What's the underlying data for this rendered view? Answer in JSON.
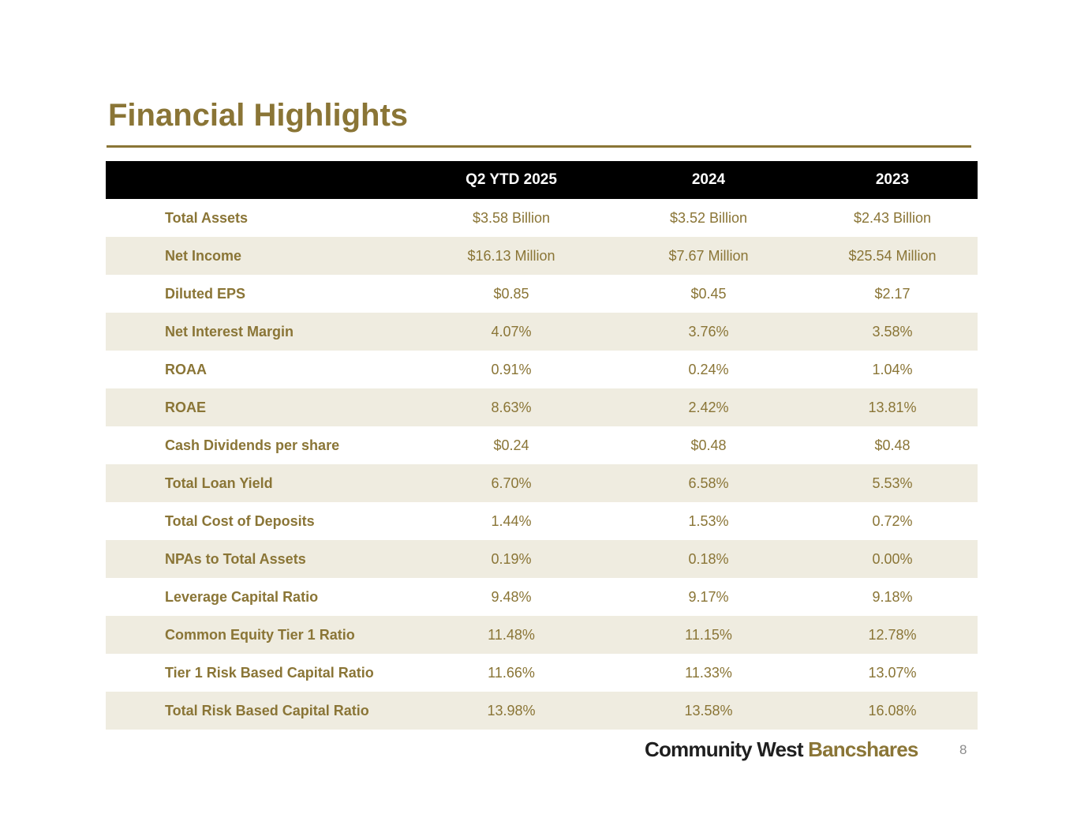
{
  "slide": {
    "title": "Financial Highlights",
    "page_number": "8"
  },
  "table": {
    "columns": [
      "",
      "Q2 YTD 2025",
      "2024",
      "2023"
    ],
    "rows": [
      {
        "label": "Total Assets",
        "q2_ytd_2025": "$3.58 Billion",
        "y2024": "$3.52 Billion",
        "y2023": "$2.43 Billion"
      },
      {
        "label": "Net Income",
        "q2_ytd_2025": "$16.13 Million",
        "y2024": "$7.67 Million",
        "y2023": "$25.54 Million"
      },
      {
        "label": "Diluted EPS",
        "q2_ytd_2025": "$0.85",
        "y2024": "$0.45",
        "y2023": "$2.17"
      },
      {
        "label": "Net Interest Margin",
        "q2_ytd_2025": "4.07%",
        "y2024": "3.76%",
        "y2023": "3.58%"
      },
      {
        "label": "ROAA",
        "q2_ytd_2025": "0.91%",
        "y2024": "0.24%",
        "y2023": "1.04%"
      },
      {
        "label": "ROAE",
        "q2_ytd_2025": "8.63%",
        "y2024": "2.42%",
        "y2023": "13.81%"
      },
      {
        "label": "Cash Dividends per share",
        "q2_ytd_2025": "$0.24",
        "y2024": "$0.48",
        "y2023": "$0.48"
      },
      {
        "label": "Total Loan Yield",
        "q2_ytd_2025": "6.70%",
        "y2024": "6.58%",
        "y2023": "5.53%"
      },
      {
        "label": "Total Cost of Deposits",
        "q2_ytd_2025": "1.44%",
        "y2024": "1.53%",
        "y2023": "0.72%"
      },
      {
        "label": "NPAs to Total Assets",
        "q2_ytd_2025": "0.19%",
        "y2024": "0.18%",
        "y2023": "0.00%"
      },
      {
        "label": "Leverage Capital Ratio",
        "q2_ytd_2025": "9.48%",
        "y2024": "9.17%",
        "y2023": "9.18%"
      },
      {
        "label": "Common Equity Tier 1 Ratio",
        "q2_ytd_2025": "11.48%",
        "y2024": "11.15%",
        "y2023": "12.78%"
      },
      {
        "label": "Tier 1 Risk Based Capital Ratio",
        "q2_ytd_2025": "11.66%",
        "y2024": "11.33%",
        "y2023": "13.07%"
      },
      {
        "label": "Total Risk Based Capital Ratio",
        "q2_ytd_2025": "13.98%",
        "y2024": "13.58%",
        "y2023": "16.08%"
      }
    ]
  },
  "footer": {
    "logo_part_1": "Community West",
    "logo_part_2": "Bancshares"
  },
  "colors": {
    "accent": "#8a7536",
    "header_bg": "#000000",
    "stripe_bg": "#efece0",
    "logo_dark": "#1f1f1f"
  }
}
